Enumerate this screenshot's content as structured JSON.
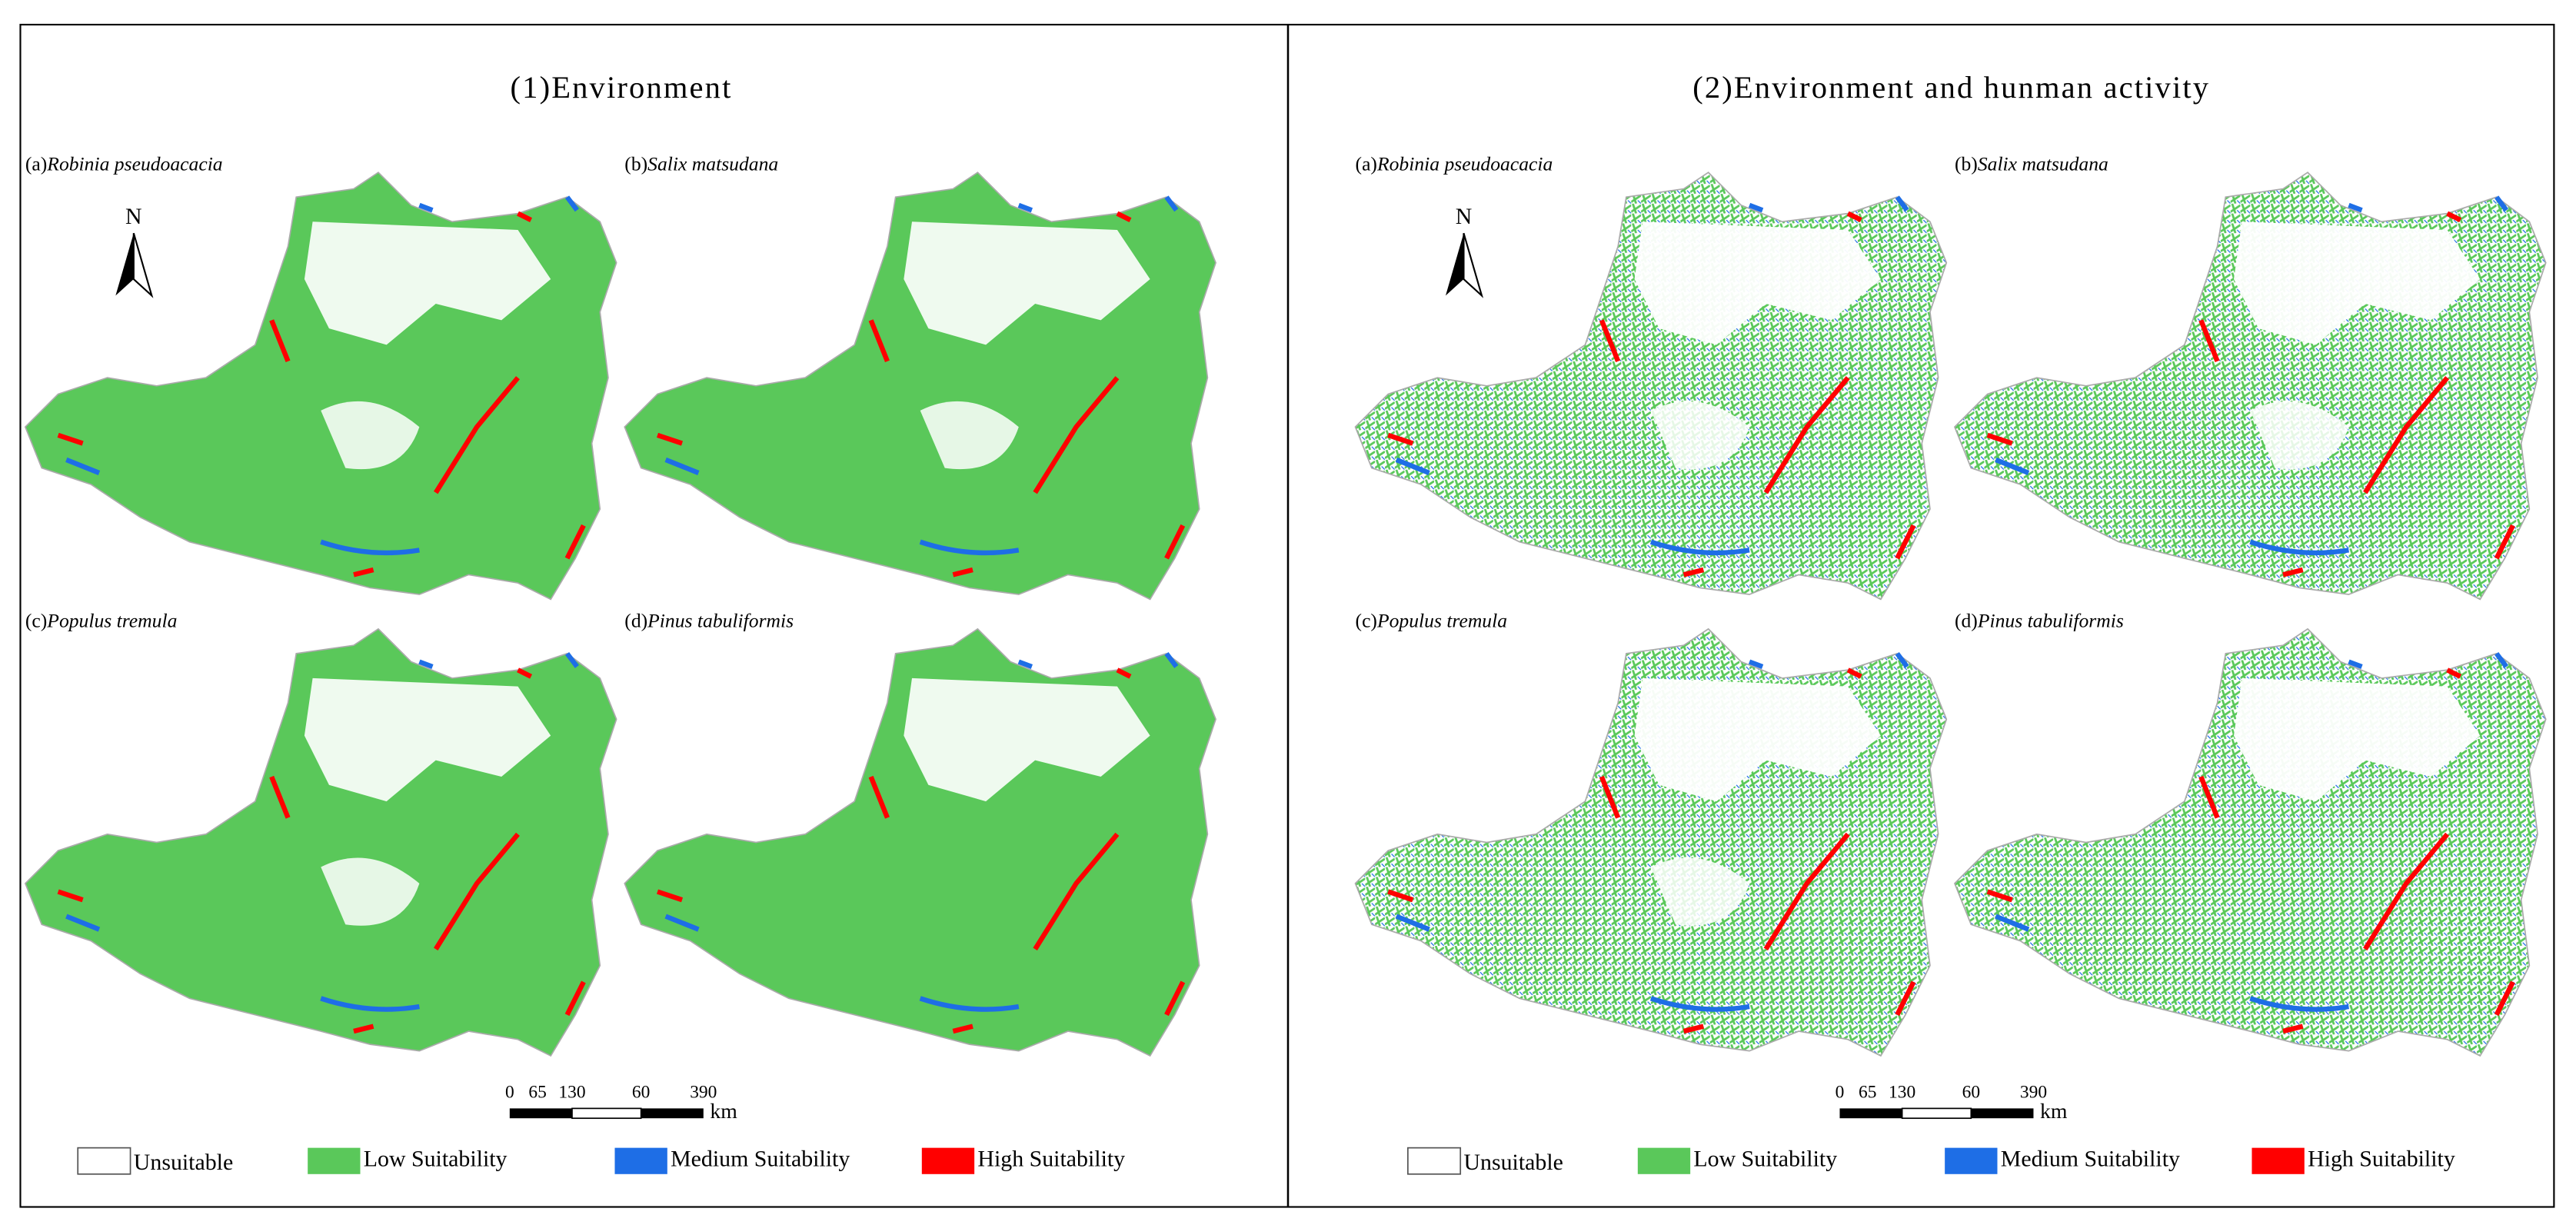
{
  "panels": [
    {
      "title": "(1)Environment",
      "maps": [
        {
          "prefix": "(a)",
          "species": "Robinia pseudoacacia"
        },
        {
          "prefix": "(b)",
          "species": "Salix matsudana"
        },
        {
          "prefix": "(c)",
          "species": "Populus tremula"
        },
        {
          "prefix": "(d)",
          "species": "Pinus tabuliformis"
        }
      ],
      "north": "N",
      "scale_bar": {
        "labels": [
          "0",
          "65",
          "130",
          "60",
          "390"
        ],
        "unit": "km"
      },
      "legend": [
        {
          "label": "Unsuitable",
          "color": "#ffffff"
        },
        {
          "label": "Low Suitability",
          "color": "#5ac85a"
        },
        {
          "label": "Medium Suitability",
          "color": "#1e6ee6"
        },
        {
          "label": "High Suitability",
          "color": "#ff0000"
        }
      ]
    },
    {
      "title": "(2)Environment and hunman activity",
      "maps": [
        {
          "prefix": "(a)",
          "species": "Robinia pseudoacacia"
        },
        {
          "prefix": "(b)",
          "species": "Salix matsudana"
        },
        {
          "prefix": "(c)",
          "species": "Populus tremula"
        },
        {
          "prefix": "(d)",
          "species": "Pinus tabuliformis"
        }
      ],
      "north": "N",
      "scale_bar": {
        "labels": [
          "0",
          "65",
          "130",
          "60",
          "390"
        ],
        "unit": "km"
      },
      "legend": [
        {
          "label": "Unsuitable",
          "color": "#ffffff"
        },
        {
          "label": "Low Suitability",
          "color": "#5ac85a"
        },
        {
          "label": "Medium Suitability",
          "color": "#1e6ee6"
        },
        {
          "label": "High Suitability",
          "color": "#ff0000"
        }
      ]
    }
  ]
}
